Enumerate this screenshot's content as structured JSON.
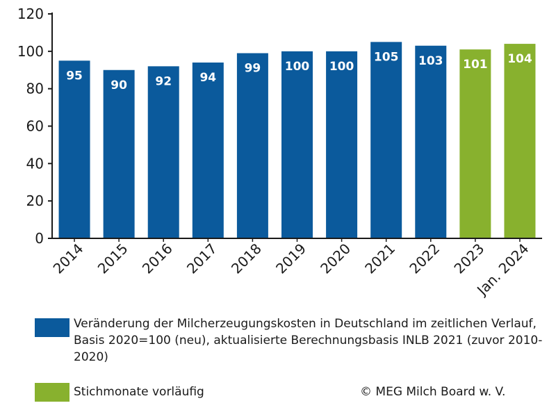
{
  "chart_data": {
    "type": "bar",
    "categories": [
      "2014",
      "2015",
      "2016",
      "2017",
      "2018",
      "2019",
      "2020",
      "2021",
      "2022",
      "2023",
      "Jan. 2024"
    ],
    "values": [
      95,
      90,
      92,
      94,
      99,
      100,
      100,
      105,
      103,
      101,
      104
    ],
    "value_labels": [
      "95",
      "90",
      "92",
      "94",
      "99",
      "100",
      "100",
      "105",
      "103",
      "101",
      "104"
    ],
    "series_kind": [
      "final",
      "final",
      "final",
      "final",
      "final",
      "final",
      "final",
      "final",
      "final",
      "provisional",
      "provisional"
    ],
    "ylim": [
      0,
      120
    ],
    "yticks": [
      0,
      20,
      40,
      60,
      80,
      100,
      120
    ],
    "ytick_labels": [
      "0",
      "20",
      "40",
      "60",
      "80",
      "100",
      "120"
    ],
    "grid": false,
    "title": "",
    "xlabel": "",
    "ylabel": ""
  },
  "colors": {
    "final": "#0b5a9c",
    "provisional": "#88b12e",
    "axis": "#1a1a1a",
    "value_label": "#ffffff"
  },
  "legend": {
    "blue_label": "Veränderung der Milcherzeugungskosten in Deutschland im zeitlichen Verlauf, Basis 2020=100 (neu), aktualisierte Berechnungsbasis INLB 2021 (zuvor 2010-2020)",
    "green_label": "Stichmonate vorläufig"
  },
  "copyright": "© MEG Milch Board w. V."
}
